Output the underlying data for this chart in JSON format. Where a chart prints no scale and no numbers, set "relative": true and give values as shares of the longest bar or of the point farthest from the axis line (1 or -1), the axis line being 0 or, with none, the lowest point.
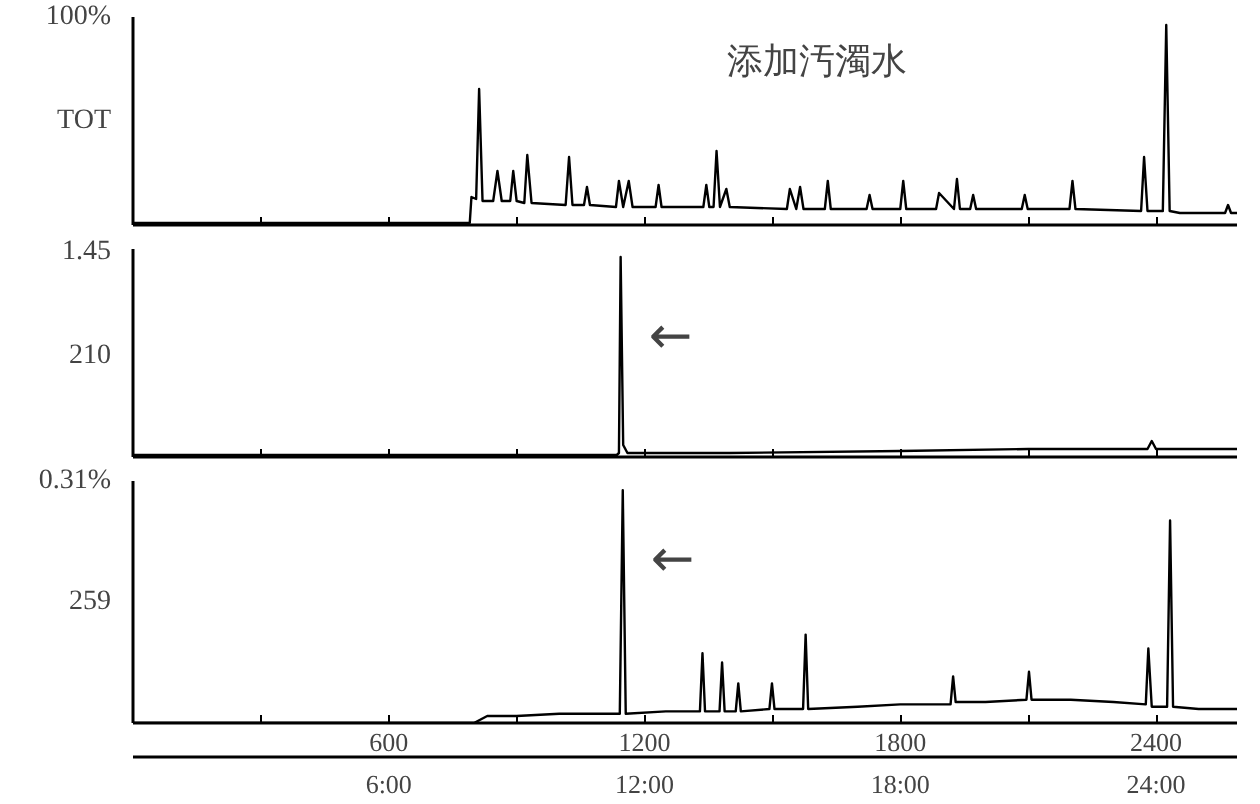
{
  "chart_data": [
    {
      "type": "line",
      "title": "添加汚濁水",
      "ylabel": "TOT",
      "relative": true,
      "tick_labels": false,
      "annotations": [
        "100%"
      ],
      "xlim": [
        0,
        2590
      ],
      "xticks": [
        {
          "value": 300,
          "label": null
        },
        600,
        {
          "value": 900,
          "label": null
        },
        1200,
        {
          "value": 1500,
          "label": null
        },
        1800,
        {
          "value": 2100,
          "label": null
        },
        2400
      ],
      "series": [
        {
          "color": "#000000",
          "x": [
            0,
            400,
            790,
            794,
            805,
            812,
            820,
            845,
            855,
            865,
            885,
            892,
            900,
            918,
            925,
            935,
            1015,
            1023,
            1031,
            1058,
            1065,
            1072,
            1133,
            1140,
            1150,
            1163,
            1172,
            1226,
            1233,
            1240,
            1338,
            1345,
            1352,
            1362,
            1369,
            1377,
            1392,
            1400,
            1534,
            1541,
            1556,
            1565,
            1573,
            1623,
            1630,
            1637,
            1721,
            1728,
            1735,
            1800,
            1807,
            1814,
            1884,
            1891,
            1926,
            1933,
            1940,
            1964,
            1971,
            1978,
            2085,
            2092,
            2099,
            2197,
            2204,
            2211,
            2365,
            2372,
            2380,
            2416,
            2424,
            2432,
            2456,
            2500,
            2562,
            2569,
            2576,
            2590
          ],
          "values": [
            0.01,
            0.01,
            0.01,
            0.14,
            0.13,
            0.68,
            0.12,
            0.12,
            0.27,
            0.12,
            0.12,
            0.27,
            0.12,
            0.11,
            0.35,
            0.11,
            0.1,
            0.34,
            0.1,
            0.1,
            0.19,
            0.1,
            0.09,
            0.22,
            0.09,
            0.22,
            0.09,
            0.09,
            0.2,
            0.09,
            0.09,
            0.2,
            0.09,
            0.09,
            0.37,
            0.09,
            0.18,
            0.09,
            0.08,
            0.18,
            0.08,
            0.19,
            0.08,
            0.08,
            0.22,
            0.08,
            0.08,
            0.15,
            0.08,
            0.08,
            0.22,
            0.08,
            0.08,
            0.16,
            0.08,
            0.23,
            0.08,
            0.08,
            0.15,
            0.08,
            0.08,
            0.15,
            0.08,
            0.08,
            0.22,
            0.08,
            0.07,
            0.34,
            0.07,
            0.07,
            1.0,
            0.07,
            0.06,
            0.06,
            0.06,
            0.1,
            0.06,
            0.06
          ]
        }
      ]
    },
    {
      "type": "line",
      "ylabel": "210",
      "relative": true,
      "tick_labels": false,
      "annotations": [
        "1.45",
        {
          "text": "←",
          "x": 1144,
          "y": 0.6
        }
      ],
      "xlim": [
        0,
        2590
      ],
      "xticks": [
        {
          "value": 300,
          "label": null
        },
        600,
        {
          "value": 900,
          "label": null
        },
        1200,
        {
          "value": 1500,
          "label": null
        },
        1800,
        {
          "value": 2100,
          "label": null
        },
        2400
      ],
      "series": [
        {
          "color": "#000000",
          "x": [
            0,
            600,
            1135,
            1140,
            1144,
            1150,
            1160,
            1400,
            1800,
            2100,
            2380,
            2390,
            2400,
            2590
          ],
          "values": [
            0.01,
            0.01,
            0.01,
            0.02,
            1.0,
            0.06,
            0.02,
            0.02,
            0.03,
            0.04,
            0.04,
            0.08,
            0.04,
            0.04
          ]
        }
      ]
    },
    {
      "type": "line",
      "ylabel": "259",
      "relative": true,
      "tick_labels": "x",
      "annotations": [
        "0.31%",
        {
          "text": "←",
          "x": 1149,
          "y": 0.7
        }
      ],
      "xlim": [
        0,
        2590
      ],
      "xticks": [
        {
          "value": 300,
          "label": null
        },
        600,
        {
          "value": 900,
          "label": null
        },
        1200,
        {
          "value": 1500,
          "label": null
        },
        1800,
        {
          "value": 2100,
          "label": null
        },
        2400
      ],
      "x2lim": [
        0,
        25.9
      ],
      "x2ticks": [
        {
          "value": 6,
          "label": "6:00"
        },
        {
          "value": 12,
          "label": "12:00"
        },
        {
          "value": 18,
          "label": "18:00"
        },
        {
          "value": 24,
          "label": "24:00"
        }
      ],
      "series": [
        {
          "color": "#000000",
          "x": [
            0,
            800,
            831,
            900,
            1000,
            1100,
            1142,
            1149,
            1156,
            1250,
            1330,
            1336,
            1342,
            1376,
            1382,
            1388,
            1414,
            1420,
            1426,
            1493,
            1499,
            1505,
            1572,
            1578,
            1584,
            1700,
            1800,
            1918,
            1924,
            1930,
            2000,
            2096,
            2102,
            2108,
            2200,
            2300,
            2376,
            2382,
            2390,
            2426,
            2433,
            2440,
            2500,
            2590
          ],
          "values": [
            0.0,
            0.0,
            0.03,
            0.03,
            0.04,
            0.04,
            0.04,
            1.0,
            0.04,
            0.05,
            0.05,
            0.3,
            0.05,
            0.05,
            0.26,
            0.05,
            0.05,
            0.17,
            0.05,
            0.06,
            0.17,
            0.06,
            0.06,
            0.38,
            0.06,
            0.07,
            0.08,
            0.08,
            0.2,
            0.09,
            0.09,
            0.1,
            0.22,
            0.1,
            0.1,
            0.09,
            0.08,
            0.32,
            0.07,
            0.07,
            0.87,
            0.07,
            0.06,
            0.06
          ]
        }
      ]
    }
  ]
}
